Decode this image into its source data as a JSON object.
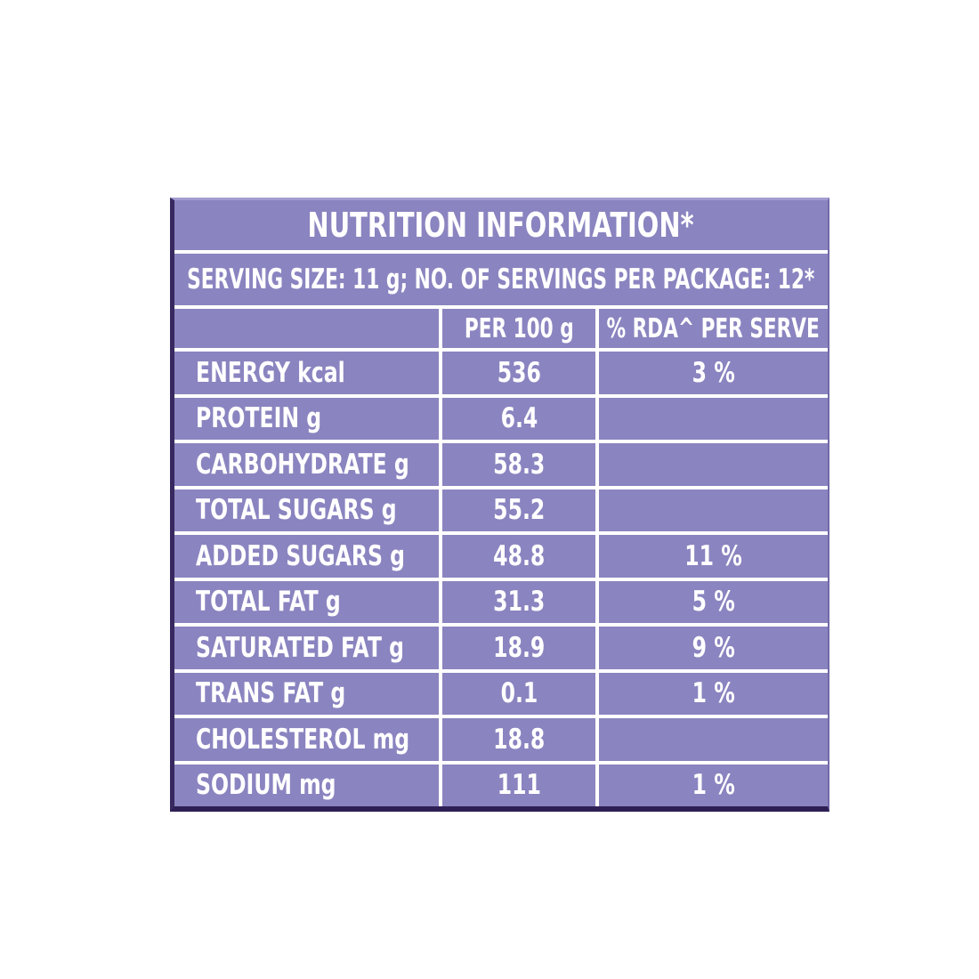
{
  "colors": {
    "page_bg": "#ffffff",
    "table_bg": "#8a84c0",
    "border_dark": "#37285f",
    "gridline": "#ffffff",
    "text": "#ffffff"
  },
  "table": {
    "title": "NUTRITION INFORMATION*",
    "serving_line": "SERVING SIZE: 11 g; NO. OF SERVINGS PER PACKAGE: 12*",
    "columns": [
      "",
      "PER 100 g",
      "% RDA^ PER SERVE"
    ],
    "rows": [
      {
        "label": "ENERGY kcal",
        "per100": "536",
        "rda": "3 %"
      },
      {
        "label": "PROTEIN g",
        "per100": "6.4",
        "rda": ""
      },
      {
        "label": "CARBOHYDRATE g",
        "per100": "58.3",
        "rda": ""
      },
      {
        "label": "TOTAL SUGARS g",
        "per100": "55.2",
        "rda": ""
      },
      {
        "label": "ADDED SUGARS g",
        "per100": "48.8",
        "rda": "11 %"
      },
      {
        "label": "TOTAL FAT g",
        "per100": "31.3",
        "rda": "5 %"
      },
      {
        "label": "SATURATED FAT g",
        "per100": "18.9",
        "rda": "9 %"
      },
      {
        "label": "TRANS FAT g",
        "per100": "0.1",
        "rda": "1 %"
      },
      {
        "label": "CHOLESTEROL mg",
        "per100": "18.8",
        "rda": ""
      },
      {
        "label": "SODIUM mg",
        "per100": "111",
        "rda": "1 %"
      }
    ]
  }
}
